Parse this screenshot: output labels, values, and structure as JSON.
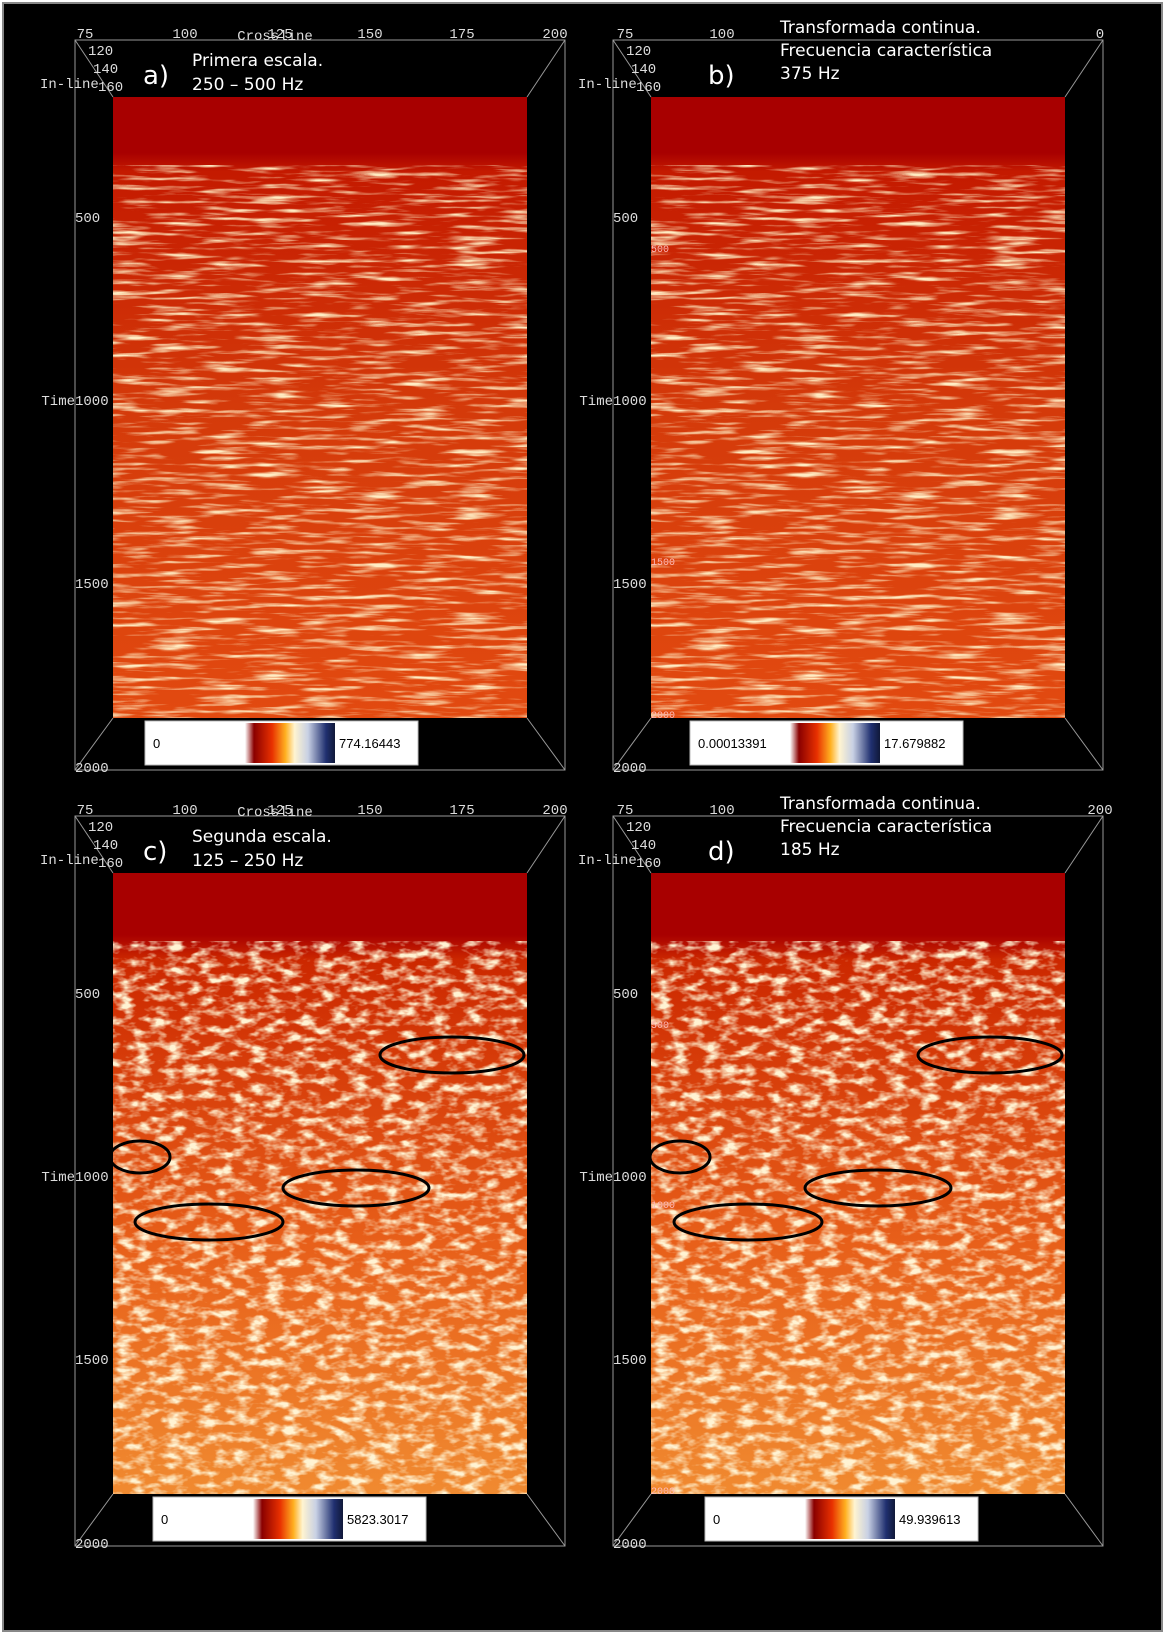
{
  "panels": [
    {
      "letter": "a)",
      "caption": [
        "Primera escala.",
        "250 – 500 Hz"
      ],
      "crossline_label": "Crossline",
      "crossline_ticks": [
        75,
        100,
        125,
        150,
        175,
        200
      ],
      "inline_label": "In-line",
      "inline_ticks": [
        120,
        140,
        160
      ],
      "time_label": "Time",
      "time_ticks": [
        500,
        1000,
        1500,
        2000
      ],
      "inner_ticks": [],
      "colorbar": {
        "min": 0,
        "max": 774.16443
      }
    },
    {
      "letter": "b)",
      "caption": [
        "Transformada continua.",
        "Frecuencia característica",
        "375 Hz"
      ],
      "crossline_label": "",
      "crossline_ticks": [
        75,
        100,
        0
      ],
      "inline_label": "In-line",
      "inline_ticks": [
        120,
        140,
        160
      ],
      "time_label": "Time",
      "time_ticks": [
        500,
        1000,
        1500,
        2000
      ],
      "inner_ticks": [
        500,
        1500,
        2000
      ],
      "colorbar": {
        "min": 0.00013391,
        "max": 17.679882
      }
    },
    {
      "letter": "c)",
      "caption": [
        "Segunda escala.",
        "125 – 250 Hz"
      ],
      "crossline_label": "Crossline",
      "crossline_ticks": [
        75,
        100,
        125,
        150,
        175,
        200
      ],
      "inline_label": "In-line",
      "inline_ticks": [
        120,
        140,
        160
      ],
      "time_label": "Time",
      "time_ticks": [
        500,
        1000,
        1500,
        2000
      ],
      "inner_ticks": [],
      "colorbar": {
        "min": 0,
        "max": 5823.3017
      }
    },
    {
      "letter": "d)",
      "caption": [
        "Transformada continua.",
        "Frecuencia característica",
        "185 Hz"
      ],
      "crossline_label": "",
      "crossline_ticks": [
        75,
        100,
        200
      ],
      "inline_label": "In-line",
      "inline_ticks": [
        120,
        140,
        160
      ],
      "time_label": "Time",
      "time_ticks": [
        500,
        1000,
        1500,
        2000
      ],
      "inner_ticks": [
        500,
        1000,
        2000
      ],
      "colorbar": {
        "min": 0,
        "max": 49.939613
      }
    }
  ]
}
